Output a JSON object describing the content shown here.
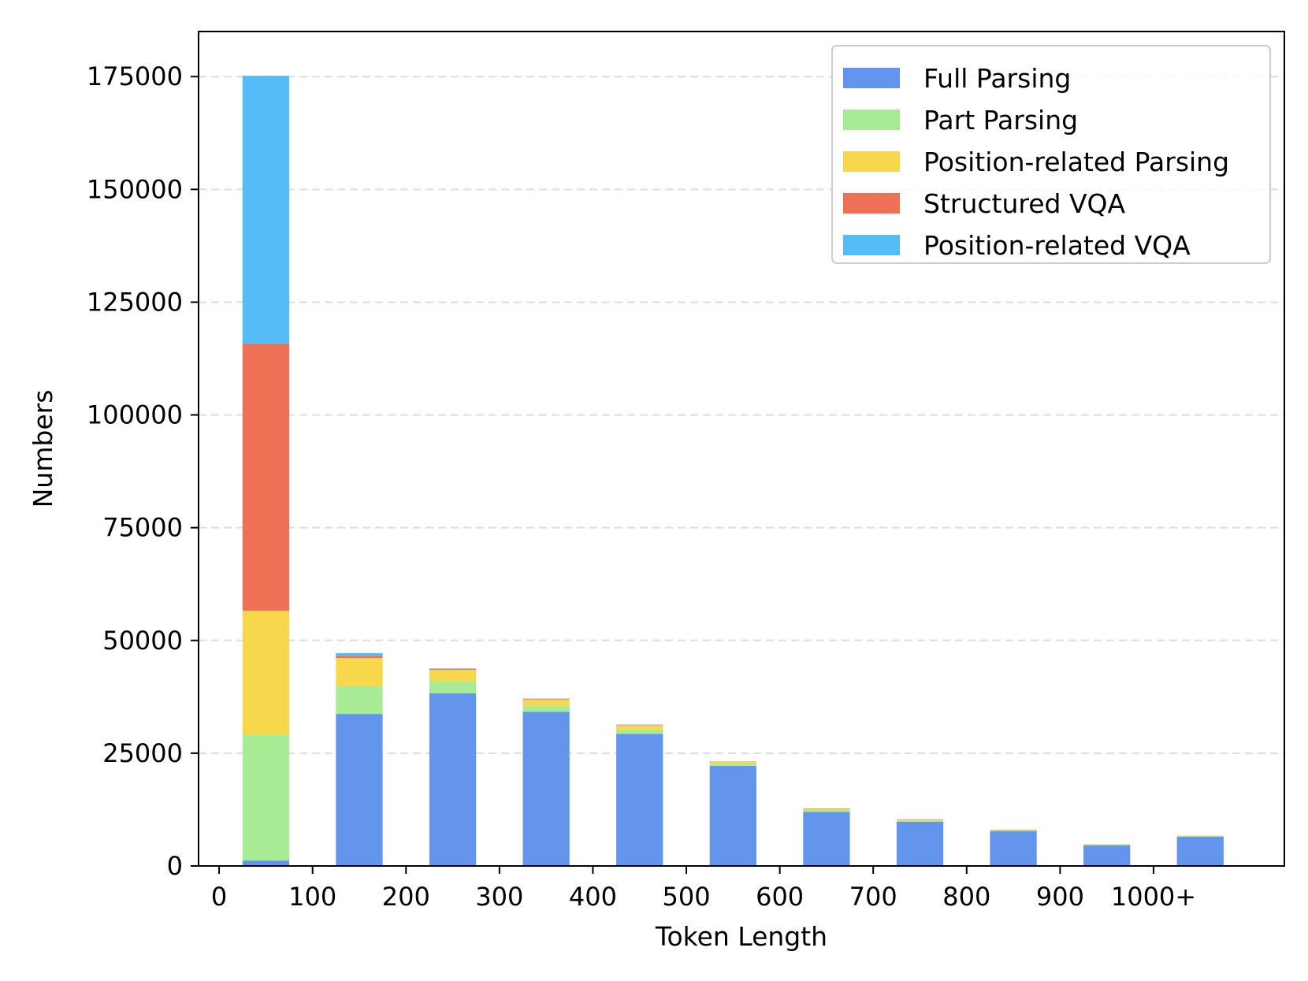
{
  "chart_data": {
    "type": "bar",
    "stacked": true,
    "title": "",
    "xlabel": "Token Length",
    "ylabel": "Numbers",
    "xlim": [
      -22,
      1140
    ],
    "ylim": [
      0,
      185000
    ],
    "x_ticks": [
      0,
      100,
      200,
      300,
      400,
      500,
      600,
      700,
      800,
      900,
      1000
    ],
    "x_tick_labels": [
      "0",
      "100",
      "200",
      "300",
      "400",
      "500",
      "600",
      "700",
      "800",
      "900",
      "1000+"
    ],
    "y_ticks": [
      0,
      25000,
      50000,
      75000,
      100000,
      125000,
      150000,
      175000
    ],
    "y_tick_labels": [
      "0",
      "25000",
      "50000",
      "75000",
      "100000",
      "125000",
      "150000",
      "175000"
    ],
    "bar_centers": [
      50,
      150,
      250,
      350,
      450,
      550,
      650,
      750,
      850,
      950,
      1050
    ],
    "bar_width": 50,
    "grid": "y-dashed",
    "legend_position": "top-right",
    "series": [
      {
        "name": "Full Parsing",
        "color": "#6495ED",
        "values": [
          1200,
          33700,
          38300,
          34200,
          29300,
          22200,
          12000,
          9800,
          7700,
          4600,
          6500
        ]
      },
      {
        "name": "Part Parsing",
        "color": "#A8EB95",
        "values": [
          27900,
          6200,
          2700,
          1300,
          900,
          500,
          400,
          300,
          200,
          150,
          150
        ]
      },
      {
        "name": "Position-related Parsing",
        "color": "#F7D74B",
        "values": [
          27500,
          6200,
          2500,
          1400,
          1000,
          400,
          300,
          200,
          100,
          100,
          100
        ]
      },
      {
        "name": "Structured VQA",
        "color": "#EE7055",
        "values": [
          59200,
          500,
          200,
          150,
          100,
          50,
          50,
          50,
          50,
          0,
          0
        ]
      },
      {
        "name": "Position-related VQA",
        "color": "#56BCF7",
        "values": [
          59400,
          600,
          100,
          50,
          50,
          0,
          0,
          0,
          0,
          0,
          0
        ]
      }
    ]
  }
}
